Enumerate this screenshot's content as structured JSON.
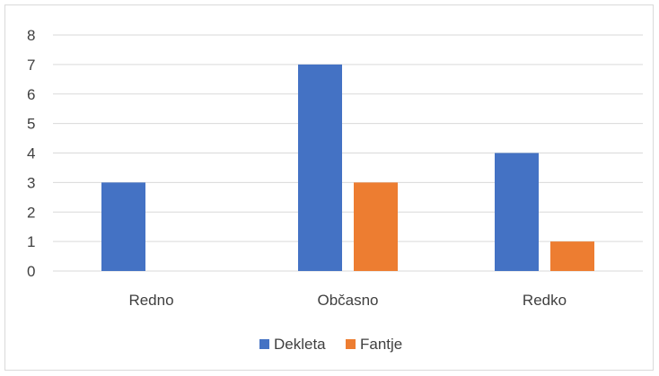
{
  "chart_data": {
    "type": "bar",
    "categories": [
      "Redno",
      "Občasno",
      "Redko"
    ],
    "series": [
      {
        "name": "Dekleta",
        "values": [
          3,
          7,
          4
        ],
        "color": "#4472c4"
      },
      {
        "name": "Fantje",
        "values": [
          0,
          3,
          1
        ],
        "color": "#ed7d31"
      }
    ],
    "ylim": [
      0,
      8
    ],
    "yticks": [
      0,
      1,
      2,
      3,
      4,
      5,
      6,
      7,
      8
    ],
    "grid": true,
    "legend": "bottom",
    "title": "",
    "xlabel": "",
    "ylabel": ""
  }
}
